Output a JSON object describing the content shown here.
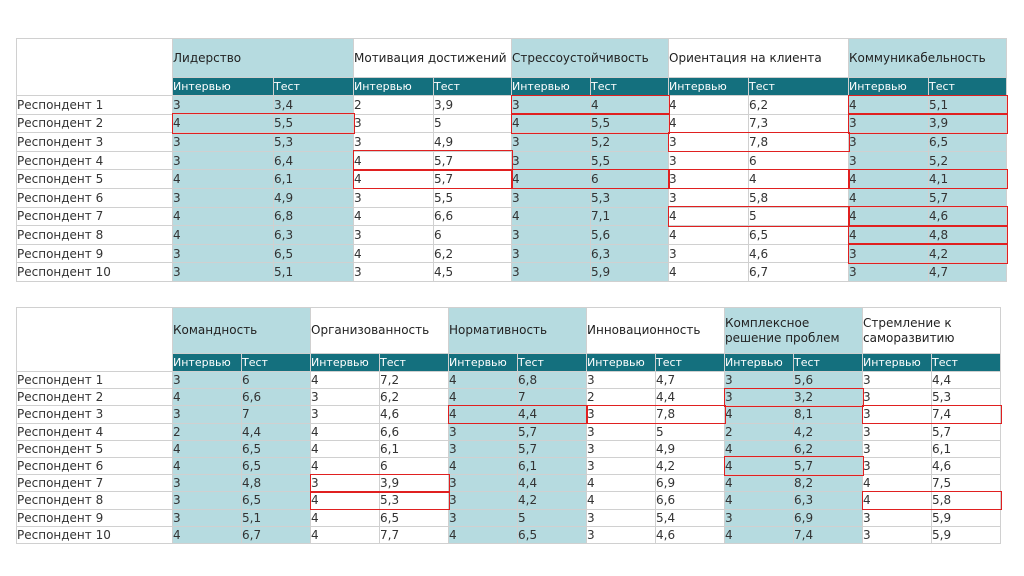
{
  "sub_headers": {
    "interview": "Интервью",
    "test": "Тест"
  },
  "colors": {
    "shade": "#b6dbe0",
    "header": "#14707e",
    "mark": "#e02020"
  },
  "table1": {
    "respondents": [
      "Респондент 1",
      "Респондент 2",
      "Респондент 3",
      "Респондент 4",
      "Респондент 5",
      "Респондент 6",
      "Респондент 7",
      "Респондент 8",
      "Респондент 9",
      "Респондент 10"
    ],
    "categories": [
      {
        "name": "Лидерство",
        "interview": [
          "3",
          "4",
          "3",
          "3",
          "4",
          "3",
          "4",
          "4",
          "3",
          "3"
        ],
        "test": [
          "3,4",
          "5,5",
          "5,3",
          "6,4",
          "6,1",
          "4,9",
          "6,8",
          "6,3",
          "6,5",
          "5,1"
        ]
      },
      {
        "name": "Мотивация достижений",
        "interview": [
          "2",
          "3",
          "3",
          "4",
          "4",
          "3",
          "4",
          "3",
          "4",
          "3"
        ],
        "test": [
          "3,9",
          "5",
          "4,9",
          "5,7",
          "5,7",
          "5,5",
          "6,6",
          "6",
          "6,2",
          "4,5"
        ]
      },
      {
        "name": "Стрессоустойчивость",
        "interview": [
          "3",
          "4",
          "3",
          "3",
          "4",
          "3",
          "4",
          "3",
          "3",
          "3"
        ],
        "test": [
          "4",
          "5,5",
          "5,2",
          "5,5",
          "6",
          "5,3",
          "7,1",
          "5,6",
          "6,3",
          "5,9"
        ]
      },
      {
        "name": "Ориентация на клиента",
        "interview": [
          "4",
          "4",
          "3",
          "3",
          "3",
          "3",
          "4",
          "4",
          "3",
          "4"
        ],
        "test": [
          "6,2",
          "7,3",
          "7,8",
          "6",
          "4",
          "5,8",
          "5",
          "6,5",
          "4,6",
          "6,7"
        ]
      },
      {
        "name": "Коммуникабельность",
        "interview": [
          "4",
          "3",
          "3",
          "3",
          "4",
          "4",
          "4",
          "4",
          "3",
          "3"
        ],
        "test": [
          "5,1",
          "3,9",
          "6,5",
          "5,2",
          "4,1",
          "5,7",
          "4,6",
          "4,8",
          "4,2",
          "4,7"
        ]
      }
    ]
  },
  "table2": {
    "respondents": [
      "Респондент 1",
      "Респондент 2",
      "Респондент 3",
      "Респондент 4",
      "Респондент 5",
      "Респондент 6",
      "Респондент 7",
      "Респондент 8",
      "Респондент 9",
      "Респондент 10"
    ],
    "categories": [
      {
        "name": "Командность",
        "interview": [
          "3",
          "4",
          "3",
          "2",
          "4",
          "4",
          "3",
          "3",
          "3",
          "4"
        ],
        "test": [
          "6",
          "6,6",
          "7",
          "4,4",
          "6,5",
          "6,5",
          "4,8",
          "6,5",
          "5,1",
          "6,7"
        ]
      },
      {
        "name": "Организованность",
        "interview": [
          "4",
          "3",
          "3",
          "4",
          "4",
          "4",
          "3",
          "4",
          "4",
          "4"
        ],
        "test": [
          "7,2",
          "6,2",
          "4,6",
          "6,6",
          "6,1",
          "6",
          "3,9",
          "5,3",
          "6,5",
          "7,7"
        ]
      },
      {
        "name": "Нормативность",
        "interview": [
          "4",
          "4",
          "4",
          "3",
          "3",
          "4",
          "3",
          "3",
          "3",
          "4"
        ],
        "test": [
          "6,8",
          "7",
          "4,4",
          "5,7",
          "5,7",
          "6,1",
          "4,4",
          "4,2",
          "5",
          "6,5"
        ]
      },
      {
        "name": "Инновационность",
        "interview": [
          "3",
          "2",
          "3",
          "3",
          "3",
          "3",
          "4",
          "4",
          "3",
          "3"
        ],
        "test": [
          "4,7",
          "4,4",
          "7,8",
          "5",
          "4,9",
          "4,2",
          "6,9",
          "6,6",
          "5,4",
          "4,6"
        ]
      },
      {
        "name": "Комплексное решение проблем",
        "interview": [
          "3",
          "3",
          "4",
          "2",
          "4",
          "4",
          "4",
          "4",
          "3",
          "4"
        ],
        "test": [
          "5,6",
          "3,2",
          "8,1",
          "4,2",
          "6,2",
          "5,7",
          "8,2",
          "6,3",
          "6,9",
          "7,4"
        ]
      },
      {
        "name": "Стремление к саморазвитию",
        "interview": [
          "3",
          "3",
          "3",
          "3",
          "3",
          "3",
          "4",
          "4",
          "3",
          "3"
        ],
        "test": [
          "4,4",
          "5,3",
          "7,4",
          "5,7",
          "6,1",
          "4,6",
          "7,5",
          "5,8",
          "5,9",
          "5,9"
        ]
      }
    ]
  }
}
